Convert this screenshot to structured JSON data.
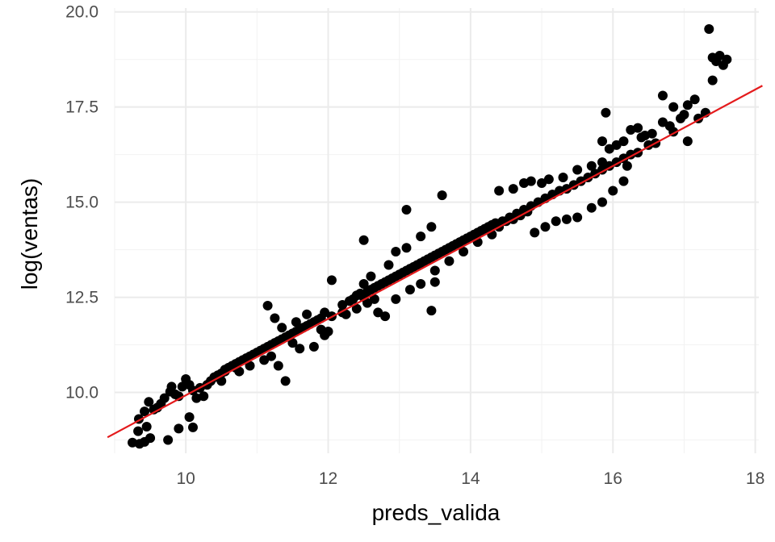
{
  "chart_data": {
    "type": "scatter",
    "title": "",
    "xlabel": "preds_valida",
    "ylabel": "log(ventas)",
    "xlim": [
      9.0,
      18.05
    ],
    "ylim": [
      8.4,
      20.1
    ],
    "xticks": [
      10,
      12,
      14,
      16,
      18
    ],
    "xtick_labels": [
      "10",
      "12",
      "14",
      "16",
      "18"
    ],
    "yticks": [
      10.0,
      12.5,
      15.0,
      17.5,
      20.0
    ],
    "ytick_labels": [
      "10.0",
      "12.5",
      "15.0",
      "17.5",
      "20.0"
    ],
    "grid": true,
    "legend": "none",
    "point_color": "#000000",
    "line_color": "#e41a1c",
    "reference_line": {
      "x1": 8.9,
      "y1": 8.82,
      "x2": 18.1,
      "y2": 18.06
    },
    "points": [
      [
        9.25,
        8.68
      ],
      [
        9.35,
        8.65
      ],
      [
        9.42,
        8.7
      ],
      [
        9.5,
        8.8
      ],
      [
        9.33,
        8.98
      ],
      [
        9.45,
        9.1
      ],
      [
        9.34,
        9.3
      ],
      [
        9.42,
        9.5
      ],
      [
        9.48,
        9.75
      ],
      [
        9.55,
        9.55
      ],
      [
        9.6,
        9.6
      ],
      [
        9.65,
        9.7
      ],
      [
        9.7,
        9.85
      ],
      [
        9.78,
        10.02
      ],
      [
        9.85,
        9.95
      ],
      [
        9.9,
        9.9
      ],
      [
        9.95,
        10.15
      ],
      [
        10.0,
        10.35
      ],
      [
        10.05,
        10.2
      ],
      [
        9.75,
        8.75
      ],
      [
        9.9,
        9.05
      ],
      [
        10.1,
        9.08
      ],
      [
        10.05,
        9.35
      ],
      [
        10.15,
        9.85
      ],
      [
        10.25,
        9.9
      ],
      [
        10.1,
        10.05
      ],
      [
        10.2,
        10.12
      ],
      [
        10.3,
        10.2
      ],
      [
        10.35,
        10.3
      ],
      [
        10.4,
        10.4
      ],
      [
        10.45,
        10.45
      ],
      [
        10.5,
        10.5
      ],
      [
        10.55,
        10.6
      ],
      [
        10.6,
        10.65
      ],
      [
        10.65,
        10.7
      ],
      [
        10.7,
        10.75
      ],
      [
        10.75,
        10.8
      ],
      [
        10.8,
        10.85
      ],
      [
        10.85,
        10.9
      ],
      [
        10.9,
        10.95
      ],
      [
        10.95,
        11.0
      ],
      [
        11.0,
        11.05
      ],
      [
        11.05,
        11.1
      ],
      [
        11.1,
        11.15
      ],
      [
        11.15,
        11.2
      ],
      [
        11.2,
        11.25
      ],
      [
        11.25,
        11.3
      ],
      [
        11.3,
        11.35
      ],
      [
        11.35,
        11.4
      ],
      [
        11.4,
        11.45
      ],
      [
        11.45,
        11.5
      ],
      [
        11.5,
        11.55
      ],
      [
        11.55,
        11.6
      ],
      [
        11.6,
        11.65
      ],
      [
        11.65,
        11.7
      ],
      [
        11.7,
        11.75
      ],
      [
        11.75,
        11.8
      ],
      [
        11.8,
        11.85
      ],
      [
        11.85,
        11.9
      ],
      [
        11.9,
        11.95
      ],
      [
        10.55,
        10.55
      ],
      [
        10.7,
        10.65
      ],
      [
        10.9,
        10.7
      ],
      [
        11.1,
        10.85
      ],
      [
        11.3,
        10.7
      ],
      [
        11.4,
        10.3
      ],
      [
        11.6,
        11.15
      ],
      [
        11.8,
        11.2
      ],
      [
        11.95,
        11.5
      ],
      [
        12.0,
        11.6
      ],
      [
        11.15,
        12.28
      ],
      [
        11.25,
        11.95
      ],
      [
        11.35,
        11.7
      ],
      [
        11.55,
        11.85
      ],
      [
        11.7,
        12.05
      ],
      [
        11.95,
        12.1
      ],
      [
        12.05,
        12.0
      ],
      [
        12.05,
        12.95
      ],
      [
        12.2,
        12.3
      ],
      [
        12.3,
        12.4
      ],
      [
        12.35,
        12.45
      ],
      [
        12.4,
        12.55
      ],
      [
        12.45,
        12.6
      ],
      [
        12.5,
        12.5
      ],
      [
        12.55,
        12.65
      ],
      [
        12.6,
        12.7
      ],
      [
        12.65,
        12.75
      ],
      [
        12.7,
        12.8
      ],
      [
        12.75,
        12.85
      ],
      [
        12.8,
        12.9
      ],
      [
        12.85,
        12.95
      ],
      [
        12.9,
        13.0
      ],
      [
        12.95,
        13.05
      ],
      [
        13.0,
        13.1
      ],
      [
        13.05,
        13.15
      ],
      [
        13.1,
        13.2
      ],
      [
        13.15,
        13.25
      ],
      [
        13.2,
        13.3
      ],
      [
        13.25,
        13.35
      ],
      [
        13.3,
        13.4
      ],
      [
        12.2,
        12.1
      ],
      [
        12.4,
        12.2
      ],
      [
        12.55,
        12.35
      ],
      [
        12.7,
        12.1
      ],
      [
        12.8,
        12.0
      ],
      [
        12.95,
        12.45
      ],
      [
        13.15,
        12.7
      ],
      [
        13.3,
        12.85
      ],
      [
        13.45,
        12.15
      ],
      [
        13.5,
        12.9
      ],
      [
        12.5,
        12.85
      ],
      [
        12.6,
        13.05
      ],
      [
        12.5,
        14.0
      ],
      [
        12.85,
        13.35
      ],
      [
        12.95,
        13.7
      ],
      [
        13.1,
        13.8
      ],
      [
        13.1,
        14.8
      ],
      [
        13.3,
        14.1
      ],
      [
        13.45,
        14.35
      ],
      [
        13.6,
        15.18
      ],
      [
        13.35,
        13.45
      ],
      [
        13.4,
        13.5
      ],
      [
        13.45,
        13.55
      ],
      [
        13.5,
        13.6
      ],
      [
        13.55,
        13.65
      ],
      [
        13.6,
        13.7
      ],
      [
        13.65,
        13.75
      ],
      [
        13.7,
        13.8
      ],
      [
        13.75,
        13.85
      ],
      [
        13.8,
        13.9
      ],
      [
        13.85,
        13.95
      ],
      [
        13.9,
        14.0
      ],
      [
        13.95,
        14.05
      ],
      [
        14.0,
        14.1
      ],
      [
        14.05,
        14.15
      ],
      [
        14.1,
        14.2
      ],
      [
        14.15,
        14.25
      ],
      [
        14.2,
        14.3
      ],
      [
        14.25,
        14.35
      ],
      [
        14.3,
        14.4
      ],
      [
        13.5,
        13.2
      ],
      [
        13.7,
        13.45
      ],
      [
        13.9,
        13.7
      ],
      [
        14.1,
        13.95
      ],
      [
        14.3,
        14.15
      ],
      [
        14.4,
        14.35
      ],
      [
        14.5,
        14.5
      ],
      [
        14.6,
        14.55
      ],
      [
        14.7,
        14.65
      ],
      [
        14.8,
        14.75
      ],
      [
        14.35,
        14.45
      ],
      [
        14.45,
        14.5
      ],
      [
        14.55,
        14.6
      ],
      [
        14.65,
        14.7
      ],
      [
        14.75,
        14.8
      ],
      [
        14.85,
        14.9
      ],
      [
        14.95,
        15.0
      ],
      [
        15.05,
        15.1
      ],
      [
        15.15,
        15.2
      ],
      [
        15.25,
        15.3
      ],
      [
        14.4,
        15.3
      ],
      [
        14.6,
        15.35
      ],
      [
        14.75,
        15.5
      ],
      [
        14.85,
        15.55
      ],
      [
        15.0,
        15.5
      ],
      [
        15.1,
        15.6
      ],
      [
        15.3,
        15.65
      ],
      [
        15.5,
        15.85
      ],
      [
        15.7,
        15.95
      ],
      [
        15.85,
        16.05
      ],
      [
        14.9,
        14.2
      ],
      [
        15.05,
        14.35
      ],
      [
        15.2,
        14.5
      ],
      [
        15.35,
        14.55
      ],
      [
        15.5,
        14.6
      ],
      [
        15.7,
        14.85
      ],
      [
        15.85,
        15.0
      ],
      [
        16.0,
        15.3
      ],
      [
        16.15,
        15.55
      ],
      [
        16.2,
        15.95
      ],
      [
        15.35,
        15.35
      ],
      [
        15.45,
        15.45
      ],
      [
        15.55,
        15.55
      ],
      [
        15.65,
        15.65
      ],
      [
        15.75,
        15.75
      ],
      [
        15.85,
        15.85
      ],
      [
        15.95,
        15.95
      ],
      [
        16.05,
        16.05
      ],
      [
        16.15,
        16.15
      ],
      [
        16.25,
        16.25
      ],
      [
        15.85,
        16.6
      ],
      [
        15.95,
        16.4
      ],
      [
        16.05,
        16.5
      ],
      [
        16.15,
        16.6
      ],
      [
        16.25,
        16.9
      ],
      [
        16.4,
        16.7
      ],
      [
        16.55,
        16.8
      ],
      [
        16.7,
        17.1
      ],
      [
        16.8,
        17.0
      ],
      [
        16.85,
        16.85
      ],
      [
        15.9,
        17.35
      ],
      [
        16.7,
        17.8
      ],
      [
        16.85,
        17.5
      ],
      [
        17.0,
        17.3
      ],
      [
        17.05,
        17.55
      ],
      [
        17.15,
        17.7
      ],
      [
        17.3,
        17.35
      ],
      [
        17.05,
        16.6
      ],
      [
        17.2,
        17.2
      ],
      [
        16.35,
        16.3
      ],
      [
        16.5,
        16.5
      ],
      [
        16.6,
        16.55
      ],
      [
        16.35,
        16.95
      ],
      [
        16.45,
        16.75
      ],
      [
        16.95,
        17.2
      ],
      [
        17.35,
        19.55
      ],
      [
        17.4,
        18.8
      ],
      [
        17.4,
        18.2
      ],
      [
        17.5,
        18.85
      ],
      [
        17.55,
        18.6
      ],
      [
        17.6,
        18.75
      ],
      [
        17.45,
        18.7
      ],
      [
        9.8,
        10.15
      ],
      [
        10.5,
        10.3
      ],
      [
        10.75,
        10.55
      ],
      [
        11.2,
        10.95
      ],
      [
        11.5,
        11.3
      ],
      [
        11.9,
        11.65
      ],
      [
        12.25,
        12.05
      ],
      [
        12.65,
        12.45
      ]
    ]
  }
}
